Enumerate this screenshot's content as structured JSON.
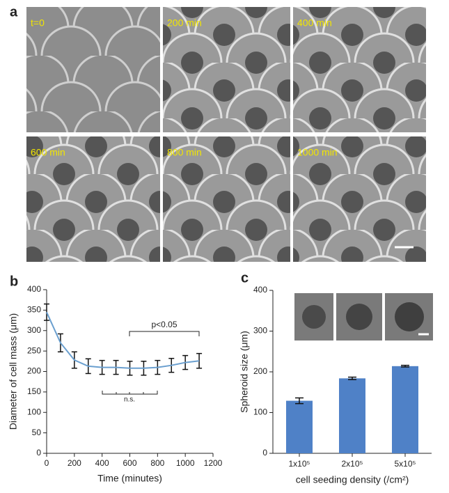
{
  "panel_labels": [
    "a",
    "b",
    "c"
  ],
  "panel_a": {
    "frames": [
      "t=0",
      "200 min",
      "400 min",
      "600 min",
      "800 min",
      "1000 min"
    ]
  },
  "chart_data": [
    {
      "type": "line",
      "x_label": "Time (minutes)",
      "y_label": "Diameter of cell mass (μm)",
      "x": [
        0,
        100,
        200,
        300,
        400,
        500,
        600,
        700,
        800,
        900,
        1000,
        1100
      ],
      "values": [
        345,
        270,
        228,
        213,
        210,
        210,
        208,
        208,
        210,
        215,
        222,
        226
      ],
      "errors": [
        20,
        22,
        20,
        18,
        17,
        17,
        17,
        17,
        17,
        17,
        17,
        18
      ],
      "color": "#6a9fcf",
      "xlim": [
        0,
        1200
      ],
      "xticks": [
        0,
        200,
        400,
        600,
        800,
        1000,
        1200
      ],
      "ylim": [
        0,
        400
      ],
      "yticks": [
        0,
        50,
        100,
        150,
        200,
        250,
        300,
        350,
        400
      ],
      "annotations": [
        "p<0.05",
        "n.s."
      ]
    },
    {
      "type": "bar",
      "x_label": "cell seeding density (/cm²)",
      "y_label": "Spheroid size (μm)",
      "categories": [
        "1x10⁵",
        "2x10⁵",
        "5x10⁵"
      ],
      "values": [
        129,
        184,
        214
      ],
      "errors": [
        7,
        3,
        2
      ],
      "color": "#4f81c7",
      "ylim": [
        0,
        400
      ],
      "yticks": [
        0,
        100,
        200,
        300,
        400
      ]
    }
  ]
}
